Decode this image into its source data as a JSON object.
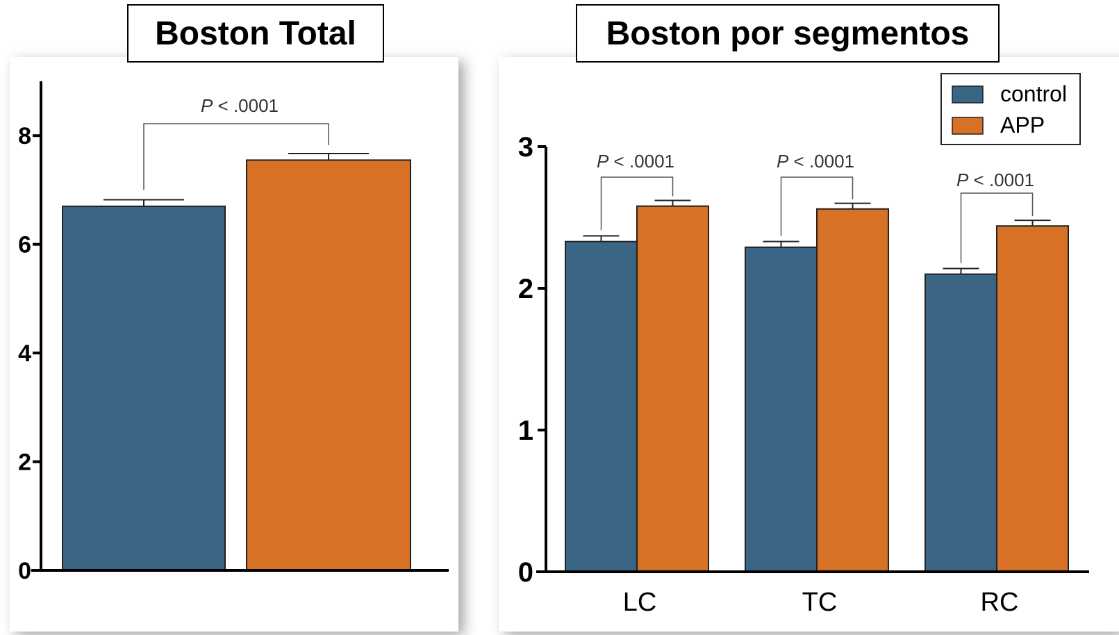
{
  "colors": {
    "control": "#3b6584",
    "app": "#d67126"
  },
  "chart_data": [
    {
      "type": "bar",
      "title": "Boston Total",
      "categories": [
        ""
      ],
      "series": [
        {
          "values": [
            6.7
          ],
          "error": [
            0.12
          ]
        },
        {
          "values": [
            7.55
          ],
          "error": [
            0.12
          ]
        }
      ],
      "ylim": [
        0,
        9
      ],
      "yticks": [
        "0",
        "2",
        "4",
        "6",
        "8"
      ],
      "annotations": [
        "P < .0001"
      ],
      "xlabel": "",
      "ylabel": ""
    },
    {
      "type": "bar",
      "title": "Boston por segmentos",
      "categories": [
        "LC",
        "TC",
        "RC"
      ],
      "series": [
        {
          "name": "control",
          "values": [
            2.33,
            2.29,
            2.1
          ],
          "error": [
            0.04,
            0.04,
            0.04
          ]
        },
        {
          "name": "APP",
          "values": [
            2.58,
            2.56,
            2.44
          ],
          "error": [
            0.04,
            0.04,
            0.04
          ]
        }
      ],
      "ylim": [
        0,
        3.3
      ],
      "yticks": [
        "0",
        "1",
        "2",
        "3"
      ],
      "annotations": [
        "P < .0001",
        "P < .0001",
        "P < .0001"
      ],
      "legend": "top-right",
      "xlabel": "",
      "ylabel": ""
    }
  ]
}
